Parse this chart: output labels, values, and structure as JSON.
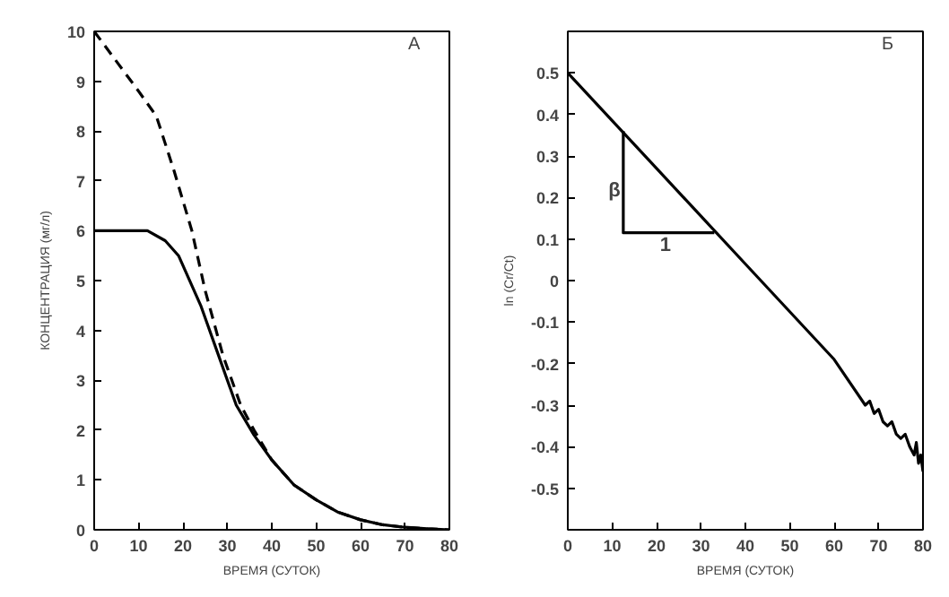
{
  "chart_data": [
    {
      "type": "line",
      "xlabel": "ВРЕМЯ (СУТОК)",
      "ylabel": "КОНЦЕНТРАЦИЯ (мг/л)",
      "annotations": [
        "А"
      ],
      "xlim": [
        0,
        80
      ],
      "ylim": [
        0,
        10
      ],
      "xticks": [
        0,
        10,
        20,
        30,
        40,
        50,
        60,
        70,
        80
      ],
      "yticks": [
        0,
        1,
        2,
        3,
        4,
        5,
        6,
        7,
        8,
        9,
        10
      ],
      "grid": false,
      "series": [
        {
          "color": "#000000",
          "line_style": "dashed",
          "x": [
            0,
            5,
            10,
            14,
            18,
            22,
            25,
            29,
            33,
            36,
            40,
            45,
            50,
            55,
            60,
            65,
            70,
            75,
            80
          ],
          "values": [
            10,
            9.4,
            8.8,
            8.3,
            7.2,
            6,
            4.8,
            3.5,
            2.5,
            2,
            1.4,
            0.9,
            0.6,
            0.35,
            0.2,
            0.1,
            0.05,
            0.02,
            0
          ]
        },
        {
          "color": "#000000",
          "line_style": "solid",
          "x": [
            0,
            12,
            16,
            19,
            24,
            28,
            32,
            36,
            40,
            45,
            50,
            55,
            60,
            65,
            70,
            75,
            80
          ],
          "values": [
            6,
            6,
            5.8,
            5.5,
            4.5,
            3.5,
            2.5,
            1.9,
            1.4,
            0.9,
            0.6,
            0.35,
            0.2,
            0.1,
            0.05,
            0.02,
            0
          ]
        }
      ]
    },
    {
      "type": "line",
      "xlabel": "ВРЕМЯ (СУТОК)",
      "ylabel": "ln (Cr/Ct)",
      "annotations": [
        "Б",
        {
          "text": "β",
          "x": 10.5,
          "y": 0.25
        },
        {
          "text": "1",
          "x": 22,
          "y": 0.115
        }
      ],
      "xlim": [
        0,
        80
      ],
      "ylim": [
        -0.6,
        0.6
      ],
      "xticks": [
        0,
        10,
        20,
        30,
        40,
        50,
        60,
        70,
        80
      ],
      "yticks": [
        -0.5,
        -0.4,
        -0.3,
        -0.2,
        -0.1,
        0,
        0.1,
        0.2,
        0.3,
        0.4,
        0.5
      ],
      "grid": false,
      "series": [
        {
          "color": "#000000",
          "line_style": "solid",
          "x": [
            0,
            10,
            20,
            30,
            40,
            50,
            60,
            67,
            68,
            69,
            70,
            71,
            72,
            73,
            74,
            75,
            76,
            77,
            78,
            78.5,
            79,
            79.5,
            80
          ],
          "values": [
            0.5,
            0.385,
            0.27,
            0.155,
            0.04,
            -0.075,
            -0.19,
            -0.3,
            -0.29,
            -0.32,
            -0.31,
            -0.34,
            -0.35,
            -0.34,
            -0.37,
            -0.38,
            -0.37,
            -0.4,
            -0.42,
            -0.39,
            -0.44,
            -0.42,
            -0.46
          ]
        },
        {
          "color": "#000000",
          "line_style": "solid",
          "x": [
            12.5,
            12.5,
            33
          ],
          "values": [
            0.36,
            0.115,
            0.115
          ]
        }
      ]
    }
  ]
}
